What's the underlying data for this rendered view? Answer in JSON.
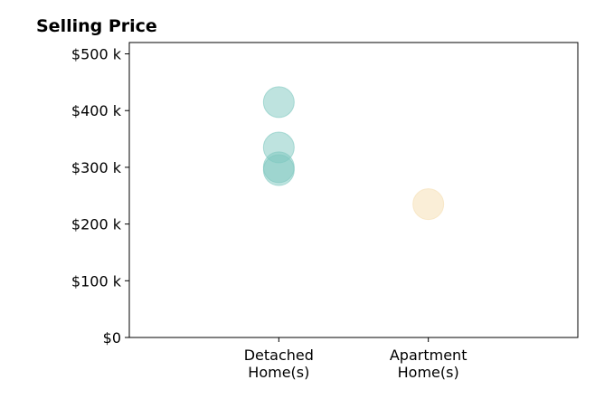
{
  "chart_data": {
    "type": "scatter",
    "title": "Selling Price",
    "xlabel": "",
    "ylabel": "",
    "categories": [
      [
        "Detached",
        "Home(s)"
      ],
      [
        "Apartment",
        "Home(s)"
      ]
    ],
    "xlim": [
      -1,
      2
    ],
    "ylim": [
      0,
      520000
    ],
    "y_ticks": [
      {
        "value": 0,
        "label": "$0"
      },
      {
        "value": 100000,
        "label": "$100 k"
      },
      {
        "value": 200000,
        "label": "$200 k"
      },
      {
        "value": 300000,
        "label": "$300 k"
      },
      {
        "value": 400000,
        "label": "$400 k"
      },
      {
        "value": 500000,
        "label": "$500 k"
      }
    ],
    "grid": false,
    "series": [
      {
        "color": "#7ec8c0",
        "points": [
          {
            "x": 0,
            "y": 415000
          },
          {
            "x": 0,
            "y": 335000
          },
          {
            "x": 0,
            "y": 300000
          },
          {
            "x": 0,
            "y": 295000
          }
        ]
      },
      {
        "color": "#f5deb0",
        "points": [
          {
            "x": 1,
            "y": 235000
          }
        ]
      }
    ]
  }
}
